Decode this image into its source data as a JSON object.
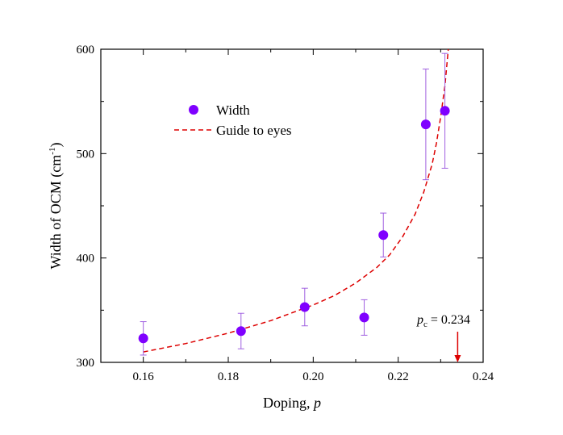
{
  "chart_data": {
    "type": "scatter",
    "xlabel": "Doping, ",
    "xlabel_var": "p",
    "ylabel": "Width of OCM (cm",
    "ylabel_sup": "-1",
    "ylabel_close": ")",
    "xlim": [
      0.15,
      0.24
    ],
    "ylim": [
      300,
      600
    ],
    "x_ticks": [
      0.16,
      0.18,
      0.2,
      0.22,
      0.24
    ],
    "x_tick_labels": [
      "0.16",
      "0.18",
      "0.20",
      "0.22",
      "0.24"
    ],
    "y_ticks": [
      300,
      400,
      500,
      600
    ],
    "y_tick_labels": [
      "300",
      "400",
      "500",
      "600"
    ],
    "grid": false,
    "legend_position": "upper-left",
    "series": [
      {
        "name": "Width",
        "kind": "points-with-error-bars",
        "color": "#7f00ff",
        "points": [
          {
            "x": 0.16,
            "y": 323,
            "err": 16
          },
          {
            "x": 0.183,
            "y": 330,
            "err": 17
          },
          {
            "x": 0.198,
            "y": 353,
            "err": 18
          },
          {
            "x": 0.212,
            "y": 343,
            "err": 17
          },
          {
            "x": 0.2165,
            "y": 422,
            "err": 21
          },
          {
            "x": 0.2265,
            "y": 528,
            "err": 53
          },
          {
            "x": 0.231,
            "y": 541,
            "err": 55
          }
        ]
      },
      {
        "name": "Guide to eyes",
        "kind": "dashed-line",
        "color": "#dd0000",
        "points": [
          {
            "x": 0.16,
            "y": 310
          },
          {
            "x": 0.17,
            "y": 318
          },
          {
            "x": 0.18,
            "y": 328
          },
          {
            "x": 0.19,
            "y": 340
          },
          {
            "x": 0.2,
            "y": 355
          },
          {
            "x": 0.205,
            "y": 364
          },
          {
            "x": 0.21,
            "y": 376
          },
          {
            "x": 0.215,
            "y": 391
          },
          {
            "x": 0.218,
            "y": 403
          },
          {
            "x": 0.221,
            "y": 420
          },
          {
            "x": 0.224,
            "y": 442
          },
          {
            "x": 0.226,
            "y": 463
          },
          {
            "x": 0.228,
            "y": 490
          },
          {
            "x": 0.229,
            "y": 510
          },
          {
            "x": 0.23,
            "y": 535
          },
          {
            "x": 0.231,
            "y": 565
          },
          {
            "x": 0.2318,
            "y": 600
          }
        ]
      }
    ],
    "annotation": {
      "label_var": "p",
      "label_sub": "c",
      "label_rest": " = 0.234",
      "x": 0.234,
      "arrow_color": "#dd0000"
    }
  }
}
